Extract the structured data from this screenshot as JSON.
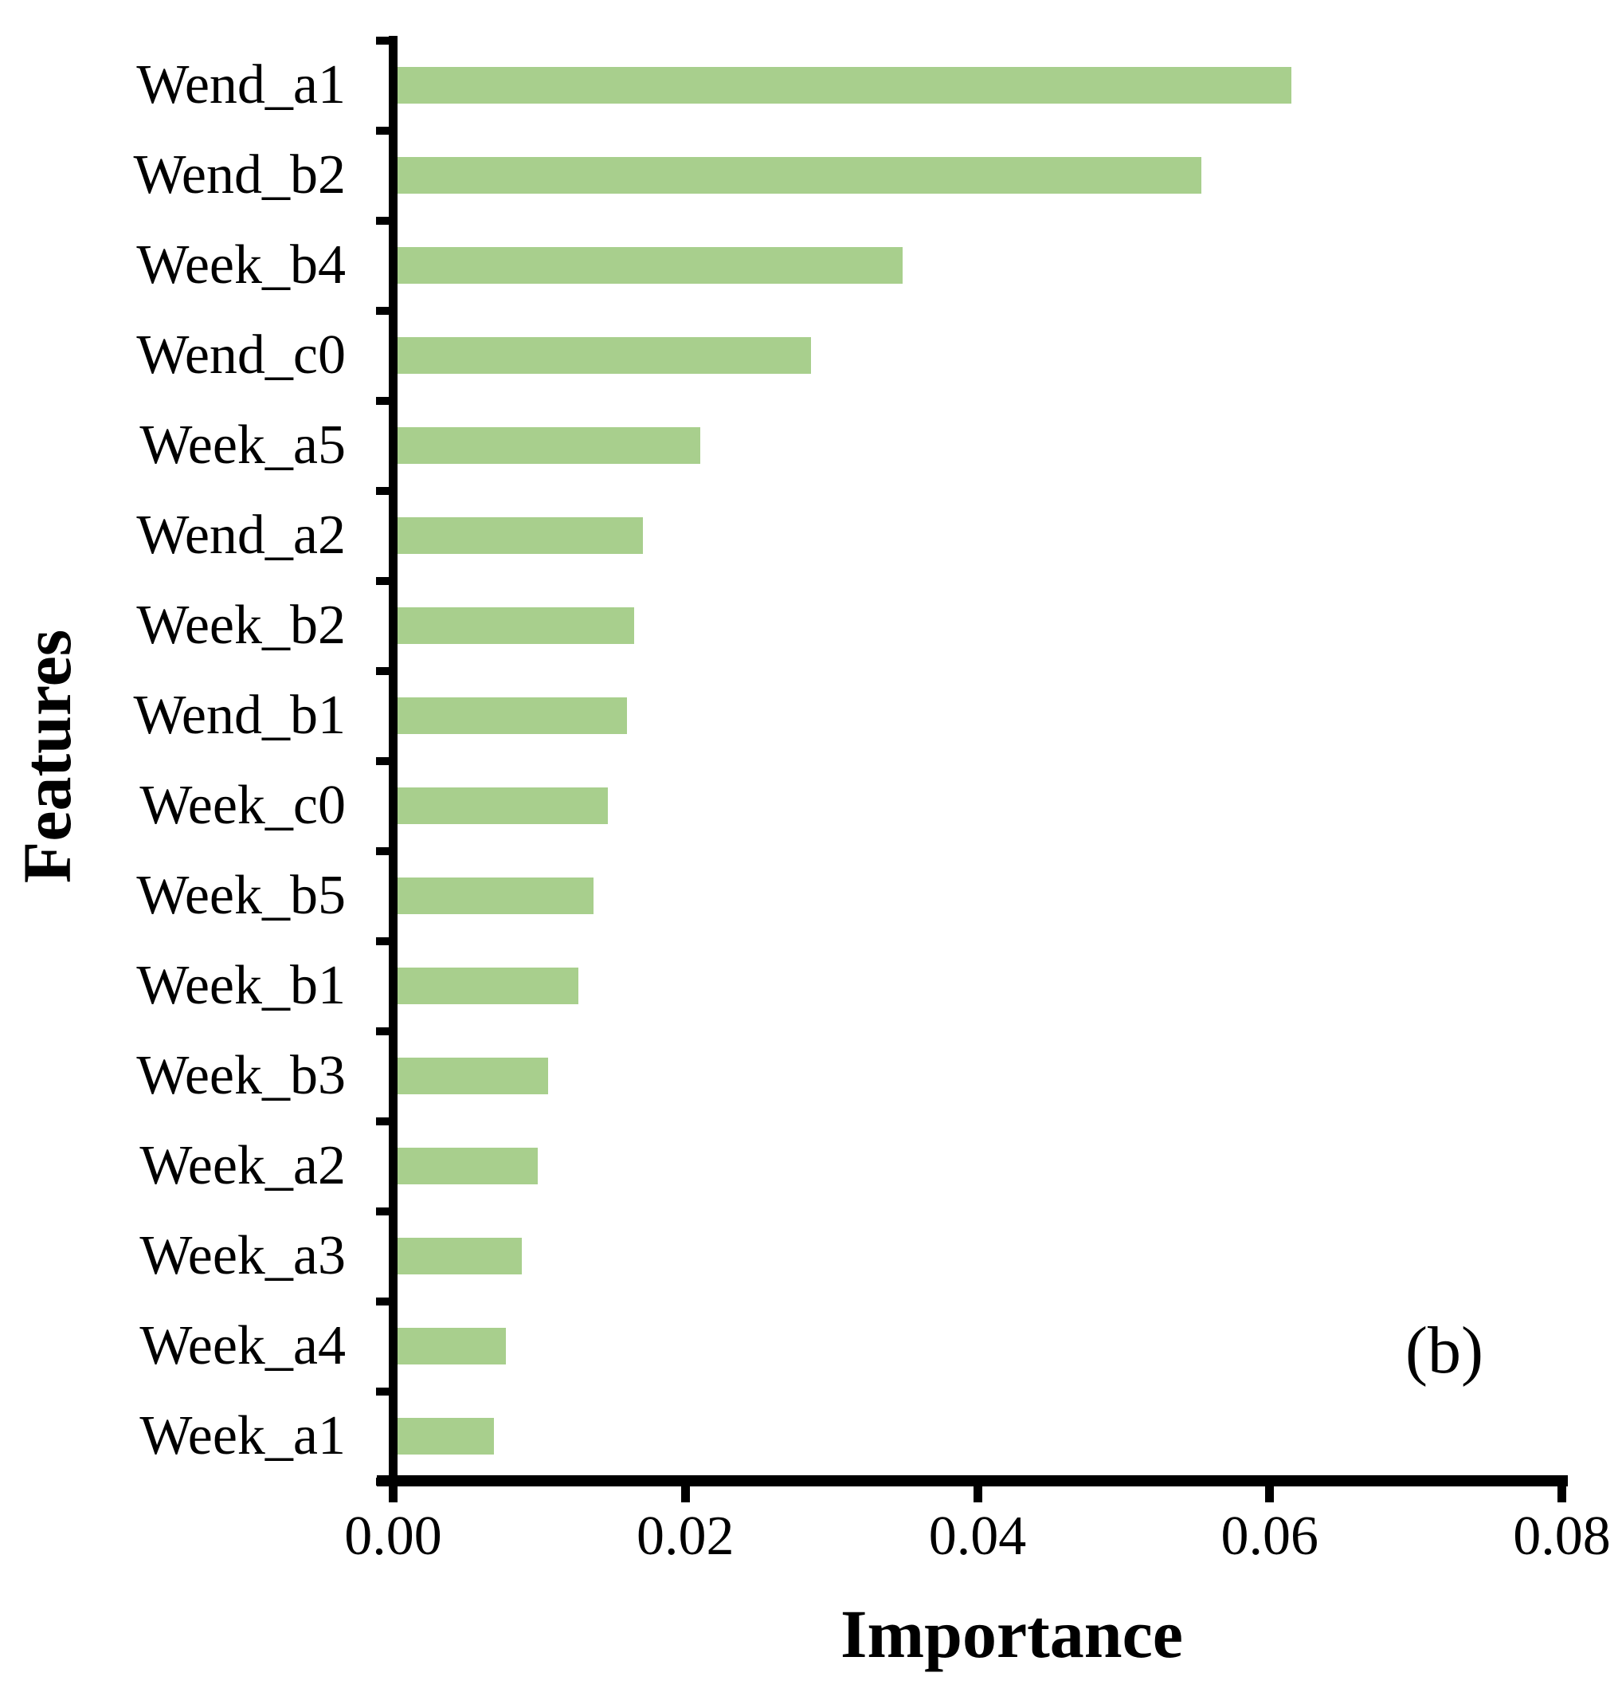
{
  "figure": {
    "panel_label": "(b)"
  },
  "chart_data": {
    "type": "bar",
    "orientation": "horizontal",
    "title": "",
    "xlabel": "Importance",
    "ylabel": "Features",
    "categories": [
      "Wend_a1",
      "Wend_b2",
      "Week_b4",
      "Wend_c0",
      "Week_a5",
      "Wend_a2",
      "Week_b2",
      "Wend_b1",
      "Week_c0",
      "Week_b5",
      "Week_b1",
      "Week_b3",
      "Week_a2",
      "Week_a3",
      "Week_a4",
      "Week_a1"
    ],
    "values": [
      0.0615,
      0.0553,
      0.0349,
      0.0286,
      0.021,
      0.0171,
      0.0165,
      0.016,
      0.0147,
      0.0137,
      0.0127,
      0.0106,
      0.0099,
      0.0088,
      0.0077,
      0.0069
    ],
    "xlim": [
      0.0,
      0.08
    ],
    "xticks": [
      0.0,
      0.02,
      0.04,
      0.06,
      0.08
    ],
    "xtick_labels": [
      "0.00",
      "0.02",
      "0.04",
      "0.06",
      "0.08"
    ],
    "bar_color": "#A8CF8D",
    "axis_color": "#000000",
    "grid": false,
    "legend": null
  }
}
